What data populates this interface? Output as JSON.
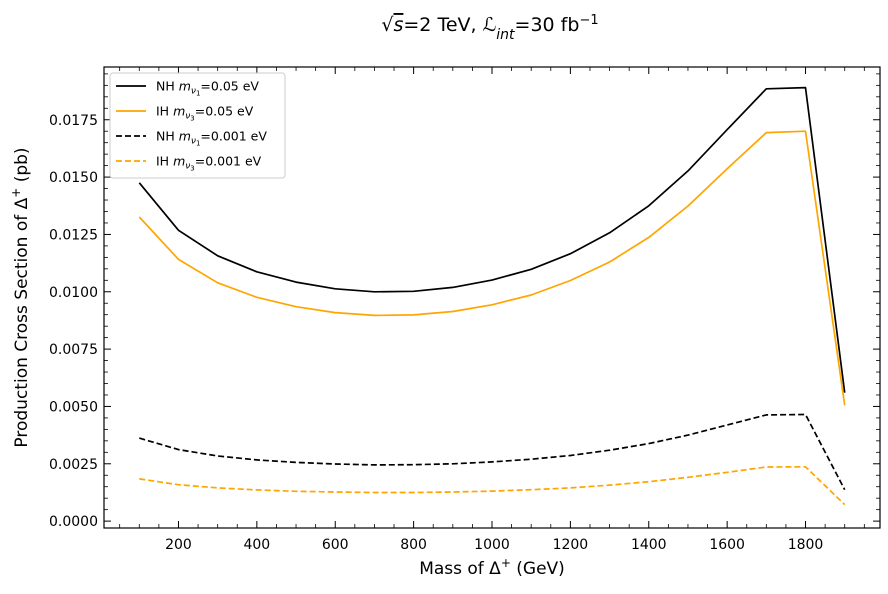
{
  "chart_data": {
    "type": "line",
    "title": "√s=2 TeV, ℒint=30 fb⁻¹",
    "title_parts": {
      "sqrt": "√",
      "s": "s",
      "eq": "=2 TeV, ",
      "script_l": "ℒ",
      "int": "int",
      "eq2": "=30 fb",
      "exp": "−1"
    },
    "xlabel": "Mass of Δ⁺ (GeV)",
    "xlabel_parts": {
      "main": "Mass of Δ",
      "sup": "+",
      "tail": " (GeV)"
    },
    "ylabel": "Production Cross Section of Δ⁺ (pb)",
    "ylabel_parts": {
      "main": "Production Cross Section of Δ",
      "sup": "+",
      "tail": " (pb)"
    },
    "xlim": [
      10,
      1990
    ],
    "ylim": [
      -0.0003,
      0.0198
    ],
    "xticks": [
      200,
      400,
      600,
      800,
      1000,
      1200,
      1400,
      1600,
      1800
    ],
    "xtick_labels": [
      "200",
      "400",
      "600",
      "800",
      "1000",
      "1200",
      "1400",
      "1600",
      "1800"
    ],
    "yticks": [
      0.0,
      0.0025,
      0.005,
      0.0075,
      0.01,
      0.0125,
      0.015,
      0.0175
    ],
    "ytick_labels": [
      "0.0000",
      "0.0025",
      "0.0050",
      "0.0075",
      "0.0100",
      "0.0125",
      "0.0150",
      "0.0175"
    ],
    "legend_position": "upper-left",
    "x": [
      100,
      200,
      300,
      400,
      500,
      600,
      700,
      800,
      900,
      1000,
      1100,
      1200,
      1300,
      1400,
      1500,
      1600,
      1700,
      1800,
      1900
    ],
    "series": [
      {
        "name": "NH mν1=0.05 eV",
        "label_parts": {
          "pre": "NH ",
          "m": "m",
          "nu": "ν",
          "sub": "1",
          "post": "=0.05 eV"
        },
        "color": "#000000",
        "style": "solid",
        "values": [
          0.01475,
          0.01268,
          0.01157,
          0.01087,
          0.01042,
          0.01013,
          0.01,
          0.01002,
          0.01019,
          0.01051,
          0.01098,
          0.01166,
          0.01257,
          0.01375,
          0.01527,
          0.01707,
          0.01885,
          0.0189,
          0.0056
        ]
      },
      {
        "name": "IH mν3=0.05 eV",
        "label_parts": {
          "pre": "IH ",
          "m": "m",
          "nu": "ν",
          "sub": "3",
          "post": "=0.05 eV"
        },
        "color": "#FFA500",
        "style": "solid",
        "values": [
          0.01326,
          0.01141,
          0.01039,
          0.00976,
          0.00935,
          0.00909,
          0.00897,
          0.00899,
          0.00914,
          0.00943,
          0.00986,
          0.01049,
          0.0113,
          0.01237,
          0.01374,
          0.01536,
          0.01694,
          0.017,
          0.00505
        ]
      },
      {
        "name": "NH mν1=0.001 eV",
        "label_parts": {
          "pre": "NH ",
          "m": "m",
          "nu": "ν",
          "sub": "1",
          "post": "=0.001 eV"
        },
        "color": "#000000",
        "style": "dashed",
        "values": [
          0.00362,
          0.00312,
          0.00284,
          0.00267,
          0.00256,
          0.00249,
          0.00245,
          0.00246,
          0.0025,
          0.00258,
          0.0027,
          0.00286,
          0.00309,
          0.00338,
          0.00375,
          0.00419,
          0.00463,
          0.00465,
          0.00137
        ]
      },
      {
        "name": "IH mν3=0.001 eV",
        "label_parts": {
          "pre": "IH ",
          "m": "m",
          "nu": "ν",
          "sub": "3",
          "post": "=0.001 eV"
        },
        "color": "#FFA500",
        "style": "dashed",
        "values": [
          0.00184,
          0.00159,
          0.00145,
          0.00136,
          0.0013,
          0.00127,
          0.00125,
          0.00125,
          0.00127,
          0.00131,
          0.00137,
          0.00145,
          0.00157,
          0.00172,
          0.00191,
          0.00213,
          0.00236,
          0.00237,
          0.00072
        ]
      }
    ]
  }
}
